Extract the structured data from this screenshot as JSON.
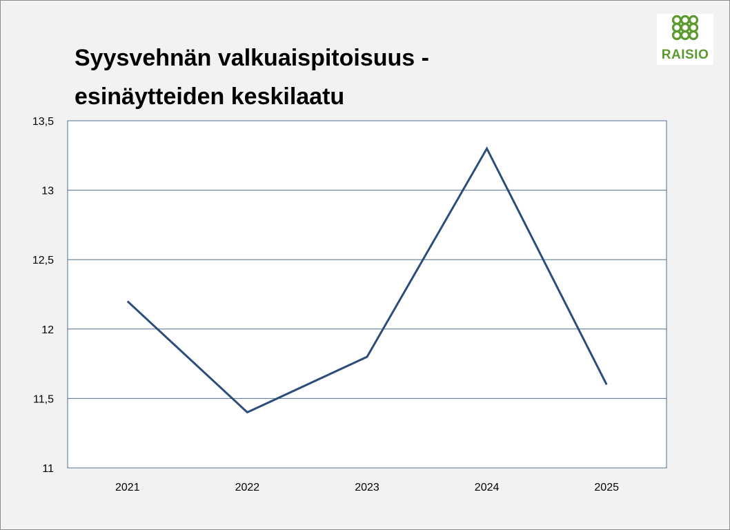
{
  "logo": {
    "text": "RAISIO",
    "icon": "raisio-logo-icon",
    "color": "#5a9a2e"
  },
  "chart_data": {
    "type": "line",
    "title_lines": [
      "Syysvehnän valkuaispitoisuus -",
      "esinäytteiden keskilaatu"
    ],
    "title": "Syysvehnän valkuaispitoisuus - esinäytteiden keskilaatu",
    "xlabel": "",
    "ylabel": "",
    "categories": [
      "2021",
      "2022",
      "2023",
      "2024",
      "2025"
    ],
    "series": [
      {
        "values": [
          12.2,
          11.4,
          11.8,
          13.3,
          11.6
        ],
        "color": "#2c4d7c"
      }
    ],
    "ylim": [
      11,
      13.5
    ],
    "yticks": [
      11,
      11.5,
      12,
      12.5,
      13,
      13.5
    ],
    "ytick_labels": [
      "11",
      "11,5",
      "12",
      "12,5",
      "13",
      "13,5"
    ],
    "grid": true,
    "legend": "none"
  }
}
